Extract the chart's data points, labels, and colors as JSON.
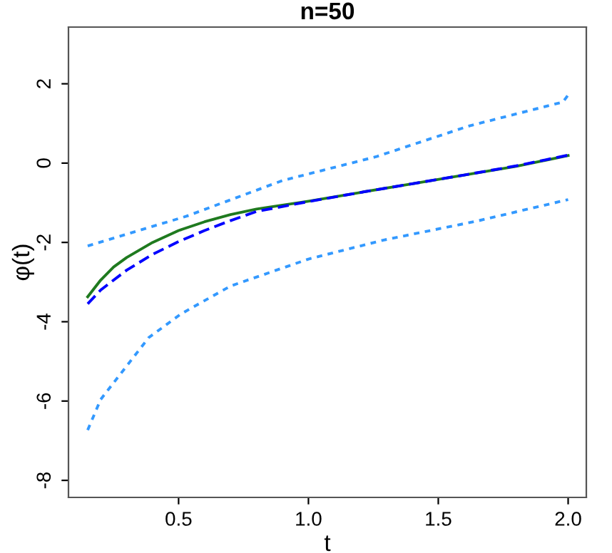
{
  "chart_data": {
    "type": "line",
    "title": "n=50",
    "xlabel": "t",
    "ylabel": "φ(t)",
    "xlim": [
      0.076,
      2.07
    ],
    "ylim": [
      -8.43,
      3.43
    ],
    "xticks": [
      0.5,
      {
        "value": 1,
        "label": "1.0"
      },
      1.5,
      {
        "value": 2,
        "label": "2.0"
      }
    ],
    "yticks": [
      -8,
      -6,
      -4,
      -2,
      0,
      2
    ],
    "grid": false,
    "legend": false,
    "series": [
      {
        "color": "#1f7a1f",
        "line_style": "solid",
        "x": [
          0.15,
          0.2,
          0.25,
          0.3,
          0.4,
          0.5,
          0.6,
          0.7,
          0.8,
          1.0,
          1.2,
          1.4,
          1.6,
          1.8,
          2.0
        ],
        "values": [
          -3.37,
          -2.95,
          -2.62,
          -2.38,
          -2.0,
          -1.7,
          -1.48,
          -1.3,
          -1.16,
          -0.96,
          -0.74,
          -0.52,
          -0.3,
          -0.08,
          0.19
        ]
      },
      {
        "color": "#0000ff",
        "line_style": "dashed",
        "x": [
          0.15,
          0.2,
          0.3,
          0.4,
          0.5,
          0.6,
          0.7,
          0.8,
          1.0,
          1.2,
          1.4,
          1.6,
          1.8,
          2.0
        ],
        "values": [
          -3.55,
          -3.2,
          -2.7,
          -2.3,
          -1.98,
          -1.7,
          -1.45,
          -1.22,
          -0.97,
          -0.74,
          -0.52,
          -0.3,
          -0.07,
          0.2
        ]
      },
      {
        "color": "#3399ff",
        "line_style": "dotted",
        "x": [
          0.15,
          0.53,
          0.9,
          1.26,
          1.62,
          1.98,
          2.0
        ],
        "values": [
          -2.09,
          -1.34,
          -0.44,
          0.16,
          0.94,
          1.54,
          1.72
        ]
      },
      {
        "color": "#3399ff",
        "line_style": "dotted",
        "x": [
          0.15,
          0.2,
          0.385,
          0.51,
          0.7,
          1.0,
          1.29,
          1.65,
          2.0
        ],
        "values": [
          -6.73,
          -5.96,
          -4.4,
          -3.8,
          -3.1,
          -2.42,
          -1.94,
          -1.46,
          -0.92
        ]
      }
    ]
  }
}
